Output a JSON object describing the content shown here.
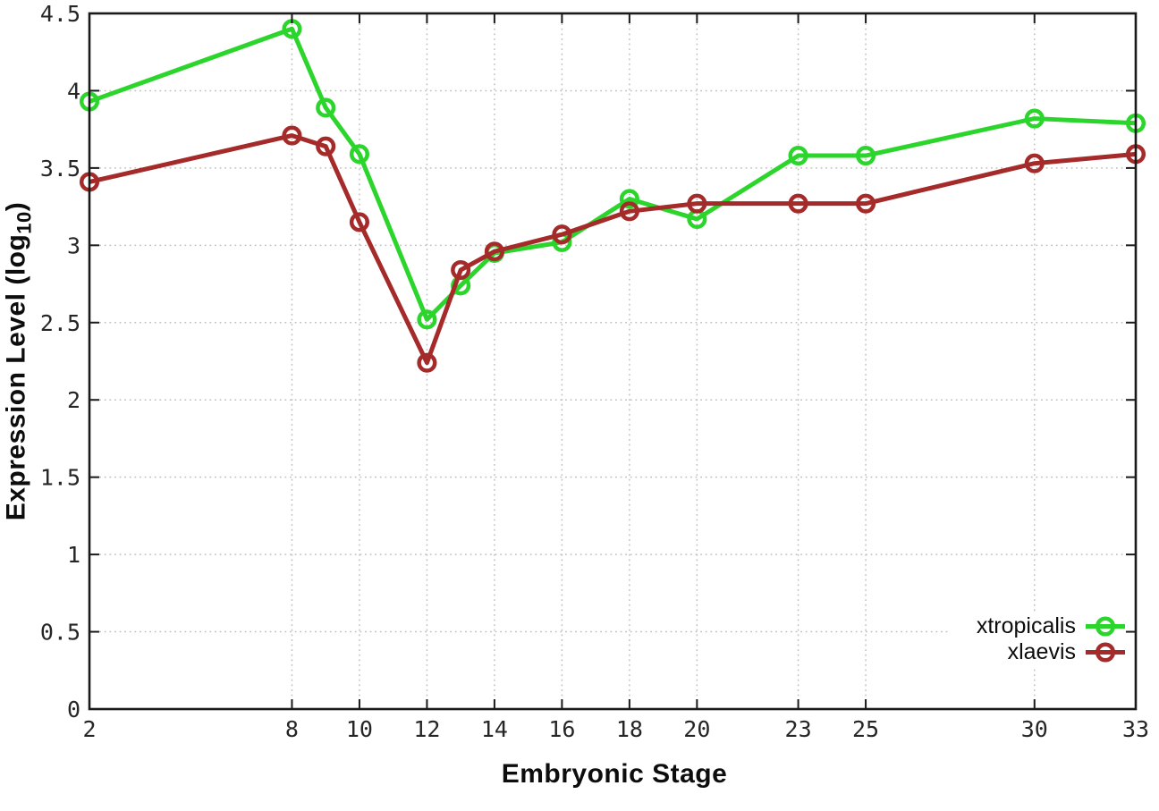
{
  "labels": {
    "y_title_prefix": "Expression Level (log",
    "y_title_sub": "10",
    "y_title_suffix": ")",
    "x_title": "Embryonic Stage"
  },
  "colors": {
    "axis": "#1a1a1a",
    "grid": "#c0c0c0",
    "tick_label": "#262626",
    "background": "#ffffff"
  },
  "chart_data": {
    "type": "line",
    "title": "",
    "xlabel": "Embryonic Stage",
    "ylabel": "Expression Level (log10)",
    "xlim": [
      2,
      33
    ],
    "ylim": [
      0,
      4.5
    ],
    "grid": true,
    "marker": "open-circle",
    "legend_position": "bottom-right-inside",
    "xticks": [
      2,
      8,
      10,
      12,
      14,
      16,
      18,
      20,
      23,
      25,
      30,
      33
    ],
    "yticks": [
      0,
      0.5,
      1,
      1.5,
      2,
      2.5,
      3,
      3.5,
      4,
      4.5
    ],
    "x": [
      2,
      8,
      9,
      10,
      12,
      13,
      14,
      16,
      18,
      20,
      23,
      25,
      30,
      33
    ],
    "series": [
      {
        "name": "xtropicalis",
        "color": "#2bd52b",
        "values": [
          3.93,
          4.4,
          3.89,
          3.59,
          2.52,
          2.74,
          2.95,
          3.02,
          3.3,
          3.17,
          3.58,
          3.58,
          3.82,
          3.79
        ]
      },
      {
        "name": "xlaevis",
        "color": "#a52a2a",
        "values": [
          3.41,
          3.71,
          3.64,
          3.15,
          2.24,
          2.84,
          2.96,
          3.07,
          3.22,
          3.27,
          3.27,
          3.27,
          3.53,
          3.59
        ]
      }
    ]
  }
}
